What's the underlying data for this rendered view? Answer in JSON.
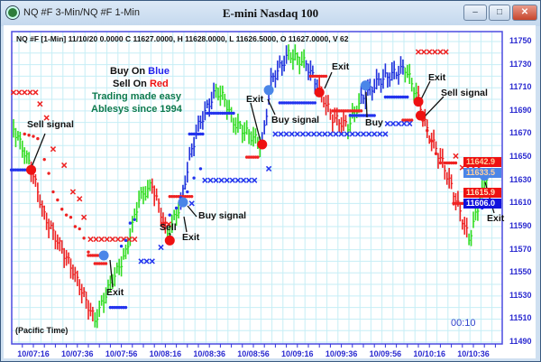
{
  "window": {
    "title": "NQ #F 3-Min/NQ #F 1-Min",
    "minimize": "–",
    "maximize": "□",
    "close": "✕"
  },
  "chart_data": {
    "type": "candlestick",
    "title": "E-mini Nasdaq 100",
    "info_line": "NQ #F [1-Min] 11/10/20  0.0000 C 11627.0000, H 11628.0000, L 11626.5000, O 11627.0000, V 62",
    "legend": {
      "line1a": "Buy On ",
      "line1b": "Blue",
      "line2a": "Sell On ",
      "line2b": "Red",
      "line3": "Trading made easy",
      "line4": "Ablesys since 1994"
    },
    "timezone_label": "(Pacific Time)",
    "bar_timer": "00:10",
    "ylim": [
      11490,
      11750
    ],
    "y_ticks": [
      "11750",
      "11730",
      "11710",
      "11690",
      "11670",
      "11650",
      "11630",
      "11610",
      "11590",
      "11570",
      "11550",
      "11530",
      "11510",
      "11490"
    ],
    "x_ticks": [
      "10/07:16",
      "10/07:36",
      "10/07:56",
      "10/08:16",
      "10/08:36",
      "10/08:56",
      "10/09:16",
      "10/09:36",
      "10/09:56",
      "10/10:16",
      "10/10:36"
    ],
    "grid": true,
    "colors": {
      "up_trend": "#2233dd",
      "down_trend": "#ee2222",
      "neutral": "#33dd22",
      "grid": "#c6eef6",
      "axis": "#3333dd"
    },
    "price_path": [
      [
        "07:07",
        11675,
        "g"
      ],
      [
        "07:15",
        11641,
        "r"
      ],
      [
        "07:21",
        11599,
        "r"
      ],
      [
        "07:34",
        11552,
        "r"
      ],
      [
        "07:42",
        11517,
        "r"
      ],
      [
        "07:44",
        11509,
        "g"
      ],
      [
        "07:50",
        11536,
        "g"
      ],
      [
        "07:58",
        11567,
        "g"
      ],
      [
        "08:04",
        11614,
        "g"
      ],
      [
        "08:10",
        11626,
        "r"
      ],
      [
        "08:17",
        11583,
        "g"
      ],
      [
        "08:23",
        11610,
        "b"
      ],
      [
        "08:27",
        11649,
        "b"
      ],
      [
        "08:31",
        11677,
        "b"
      ],
      [
        "08:39",
        11708,
        "g"
      ],
      [
        "08:43",
        11700,
        "g"
      ],
      [
        "08:47",
        11680,
        "g"
      ],
      [
        "09:00",
        11661,
        "b"
      ],
      [
        "09:04",
        11716,
        "b"
      ],
      [
        "09:12",
        11739,
        "g"
      ],
      [
        "09:20",
        11731,
        "b"
      ],
      [
        "09:26",
        11708,
        "r"
      ],
      [
        "09:32",
        11684,
        "r"
      ],
      [
        "09:39",
        11677,
        "g"
      ],
      [
        "09:45",
        11700,
        "b"
      ],
      [
        "09:53",
        11716,
        "b"
      ],
      [
        "10:05",
        11727,
        "g"
      ],
      [
        "10:11",
        11700,
        "r"
      ],
      [
        "10:15",
        11673,
        "r"
      ],
      [
        "10:22",
        11645,
        "r"
      ],
      [
        "10:28",
        11614,
        "r"
      ],
      [
        "10:34",
        11579,
        "g"
      ],
      [
        "10:38",
        11606,
        "g"
      ],
      [
        "10:42",
        11634,
        "g"
      ]
    ],
    "signals": [
      {
        "time": "07:15",
        "price": 11639,
        "side": "sell"
      },
      {
        "time": "07:48",
        "price": 11565,
        "side": "buy"
      },
      {
        "time": "08:18",
        "price": 11578,
        "side": "sell"
      },
      {
        "time": "08:24",
        "price": 11611,
        "side": "buy"
      },
      {
        "time": "09:00",
        "price": 11661,
        "side": "sell"
      },
      {
        "time": "09:03",
        "price": 11708,
        "side": "buy"
      },
      {
        "time": "09:26",
        "price": 11706,
        "side": "sell"
      },
      {
        "time": "09:47",
        "price": 11712,
        "side": "buy"
      },
      {
        "time": "10:11",
        "price": 11698,
        "side": "sell"
      },
      {
        "time": "10:12",
        "price": 11686,
        "side": "sell"
      },
      {
        "time": "10:41",
        "price": 11634,
        "side": "buy"
      }
    ],
    "annotations": [
      "Sell signal",
      "Exit",
      "Sell",
      "Buy signal",
      "Exit",
      "Exit",
      "Buy signal",
      "Exit",
      "Buy",
      "Exit",
      "Sell signal",
      "Exit"
    ],
    "stops": [
      {
        "kind": "x",
        "side": "sell",
        "from": "07:07",
        "to": "07:17",
        "price": 11706
      },
      {
        "kind": "x",
        "side": "sell",
        "points": [
          [
            "07:19",
            11696
          ],
          [
            "07:22",
            11684
          ],
          [
            "07:25",
            11657
          ],
          [
            "07:30",
            11643
          ],
          [
            "07:34",
            11620
          ],
          [
            "07:37",
            11614
          ],
          [
            "07:39",
            11598
          ]
        ]
      },
      {
        "kind": "x",
        "side": "sell",
        "from": "07:42",
        "to": "08:04",
        "price": 11579
      },
      {
        "kind": "x",
        "side": "sell",
        "from": "08:15",
        "to": "08:19",
        "price": 11592
      },
      {
        "kind": "x",
        "side": "sell",
        "from": "10:11",
        "to": "10:25",
        "price": 11741
      },
      {
        "kind": "x",
        "side": "sell",
        "points": [
          [
            "10:28",
            11651
          ]
        ]
      },
      {
        "kind": "x",
        "side": "sell",
        "from": "10:31",
        "to": "10:40",
        "price": 11641
      },
      {
        "kind": "dot",
        "side": "sell",
        "points": [
          [
            "07:12",
            11670
          ],
          [
            "07:14",
            11669
          ],
          [
            "07:16",
            11668
          ],
          [
            "07:18",
            11666
          ],
          [
            "07:21",
            11648
          ],
          [
            "07:23",
            11636
          ],
          [
            "07:25",
            11620
          ],
          [
            "07:27",
            11613
          ],
          [
            "07:29",
            11605
          ],
          [
            "07:31",
            11600
          ],
          [
            "07:33",
            11598
          ],
          [
            "07:35",
            11590
          ],
          [
            "07:37",
            11588
          ],
          [
            "07:39",
            11580
          ],
          [
            "07:41",
            11568
          ]
        ]
      },
      {
        "kind": "dot",
        "side": "sell",
        "from": "07:41",
        "to": "07:47",
        "price": 11565
      },
      {
        "kind": "dot",
        "side": "sell",
        "from": "07:44",
        "to": "07:49",
        "price": 11558
      },
      {
        "kind": "dot",
        "side": "sell",
        "from": "08:18",
        "to": "08:28",
        "price": 11616
      },
      {
        "kind": "dot",
        "side": "sell",
        "from": "08:53",
        "to": "08:58",
        "price": 11650
      },
      {
        "kind": "dot",
        "side": "sell",
        "from": "09:22",
        "to": "09:29",
        "price": 11720
      },
      {
        "kind": "dot",
        "side": "sell",
        "from": "09:32",
        "to": "09:45",
        "price": 11690
      },
      {
        "kind": "dot",
        "side": "sell",
        "from": "10:04",
        "to": "10:08",
        "price": 11682
      },
      {
        "kind": "dot",
        "side": "sell",
        "points": [
          [
            "10:13",
            11682
          ],
          [
            "10:15",
            11673
          ],
          [
            "10:17",
            11664
          ],
          [
            "10:19",
            11653
          ],
          [
            "10:21",
            11645
          ]
        ]
      },
      {
        "kind": "dot",
        "side": "sell",
        "from": "10:23",
        "to": "10:28",
        "price": 11645
      },
      {
        "kind": "dot",
        "side": "sell",
        "from": "10:27",
        "to": "10:33",
        "price": 11610
      },
      {
        "kind": "x",
        "side": "buy",
        "from": "08:05",
        "to": "08:12",
        "price": 11560
      },
      {
        "kind": "x",
        "side": "buy",
        "points": [
          [
            "08:14",
            11572
          ],
          [
            "08:28",
            11610
          ]
        ]
      },
      {
        "kind": "x",
        "side": "buy",
        "from": "08:34",
        "to": "08:58",
        "price": 11630
      },
      {
        "kind": "x",
        "side": "buy",
        "points": [
          [
            "09:03",
            11640
          ]
        ]
      },
      {
        "kind": "x",
        "side": "buy",
        "from": "09:06",
        "to": "09:57",
        "price": 11670
      },
      {
        "kind": "x",
        "side": "buy",
        "from": "09:57",
        "to": "10:08",
        "price": 11679
      },
      {
        "kind": "dot",
        "side": "buy",
        "from": "07:06",
        "to": "07:15",
        "price": 11639
      },
      {
        "kind": "dot",
        "side": "buy",
        "from": "07:51",
        "to": "07:58",
        "price": 11520
      },
      {
        "kind": "dot",
        "side": "buy",
        "points": [
          [
            "07:56",
            11573
          ],
          [
            "07:58",
            11578
          ],
          [
            "08:00",
            11593
          ],
          [
            "08:02",
            11596
          ],
          [
            "08:18",
            11600
          ],
          [
            "08:21",
            11606
          ],
          [
            "08:23",
            11615
          ],
          [
            "08:26",
            11620
          ],
          [
            "08:29",
            11632
          ],
          [
            "08:32",
            11640
          ]
        ]
      },
      {
        "kind": "dot",
        "side": "buy",
        "from": "08:27",
        "to": "08:33",
        "price": 11670
      },
      {
        "kind": "dot",
        "side": "buy",
        "from": "08:35",
        "to": "08:47",
        "price": 11688
      },
      {
        "kind": "dot",
        "side": "buy",
        "from": "09:08",
        "to": "09:24",
        "price": 11697
      },
      {
        "kind": "dot",
        "side": "buy",
        "from": "09:40",
        "to": "09:51",
        "price": 11686
      },
      {
        "kind": "dot",
        "side": "buy",
        "from": "09:56",
        "to": "10:06",
        "price": 11702
      },
      {
        "kind": "dot",
        "side": "buy",
        "points": [
          [
            "10:40",
            11606
          ]
        ]
      }
    ],
    "price_labels": [
      {
        "value": "11642.9",
        "bg": "#ee1111",
        "fg": "#ffd0a0"
      },
      {
        "value": "11633.5",
        "bg": "#4a86e8",
        "fg": "#ffd0a0"
      },
      {
        "value": "11615.9",
        "bg": "#ee1111",
        "fg": "#ffe0c0"
      },
      {
        "value": "11606.0",
        "bg": "#1111dd",
        "fg": "#ffffff"
      }
    ]
  }
}
